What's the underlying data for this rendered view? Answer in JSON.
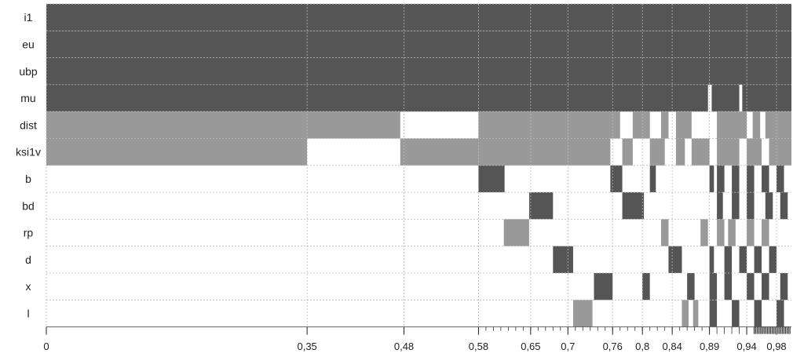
{
  "chart_data": {
    "type": "heatmap",
    "title": "",
    "xlabel": "",
    "ylabel": "",
    "xlim": [
      0,
      1
    ],
    "grid": true,
    "rows": [
      "i1",
      "eu",
      "ubp",
      "mu",
      "dist",
      "ksi1v",
      "b",
      "bd",
      "rp",
      "d",
      "x",
      "l"
    ],
    "x_tick_labels": [
      "0",
      "0,35",
      "0,48",
      "0,58",
      "0,65",
      "0,7",
      "0,76",
      "0,8",
      "0,84",
      "0,89",
      "0,94",
      "0,98"
    ],
    "colors": {
      "dark": "#555555",
      "medium": "#999999",
      "background": "#ffffff"
    },
    "value_encoding": {
      "dark": 2,
      "medium": 1,
      "none": 0
    },
    "cells": {
      "i1": [
        [
          0,
          1.0,
          "dark"
        ]
      ],
      "eu": [
        [
          0,
          1.0,
          "dark"
        ]
      ],
      "ubp": [
        [
          0,
          1.0,
          "dark"
        ]
      ],
      "mu": [
        [
          0,
          0.888,
          "dark"
        ],
        [
          0.893,
          0.93,
          "dark"
        ],
        [
          0.934,
          1.0,
          "dark"
        ]
      ],
      "dist": [
        [
          0,
          0.475,
          "medium"
        ],
        [
          0.58,
          0.77,
          "medium"
        ],
        [
          0.787,
          0.81,
          "medium"
        ],
        [
          0.825,
          0.835,
          "medium"
        ],
        [
          0.845,
          0.866,
          "medium"
        ],
        [
          0.9,
          0.94,
          "medium"
        ],
        [
          0.948,
          0.958,
          "medium"
        ],
        [
          0.965,
          1.0,
          "medium"
        ]
      ],
      "ksi1v": [
        [
          0,
          0.35,
          "medium"
        ],
        [
          0.475,
          0.757,
          "medium"
        ],
        [
          0.773,
          0.787,
          "medium"
        ],
        [
          0.81,
          0.83,
          "medium"
        ],
        [
          0.845,
          0.857,
          "medium"
        ],
        [
          0.866,
          0.89,
          "medium"
        ],
        [
          0.9,
          0.93,
          "medium"
        ],
        [
          0.94,
          0.96,
          "medium"
        ],
        [
          0.97,
          1.0,
          "medium"
        ]
      ],
      "b": [
        [
          0.58,
          0.615,
          "dark"
        ],
        [
          0.757,
          0.773,
          "dark"
        ],
        [
          0.81,
          0.818,
          "dark"
        ],
        [
          0.89,
          0.896,
          "dark"
        ],
        [
          0.9,
          0.91,
          "dark"
        ],
        [
          0.92,
          0.93,
          "dark"
        ],
        [
          0.94,
          0.95,
          "dark"
        ],
        [
          0.96,
          0.97,
          "dark"
        ],
        [
          0.98,
          0.99,
          "dark"
        ]
      ],
      "bd": [
        [
          0.648,
          0.68,
          "dark"
        ],
        [
          0.773,
          0.802,
          "dark"
        ],
        [
          0.9,
          0.908,
          "dark"
        ],
        [
          0.92,
          0.93,
          "dark"
        ],
        [
          0.94,
          0.95,
          "dark"
        ],
        [
          0.965,
          0.975,
          "dark"
        ],
        [
          0.985,
          0.995,
          "dark"
        ]
      ],
      "rp": [
        [
          0.614,
          0.648,
          "medium"
        ],
        [
          0.825,
          0.835,
          "medium"
        ],
        [
          0.878,
          0.888,
          "medium"
        ],
        [
          0.9,
          0.91,
          "medium"
        ],
        [
          0.915,
          0.925,
          "medium"
        ],
        [
          0.94,
          0.95,
          "medium"
        ],
        [
          0.96,
          0.97,
          "medium"
        ]
      ],
      "d": [
        [
          0.68,
          0.707,
          "dark"
        ],
        [
          0.835,
          0.853,
          "dark"
        ],
        [
          0.89,
          0.896,
          "dark"
        ],
        [
          0.91,
          0.92,
          "dark"
        ],
        [
          0.93,
          0.94,
          "dark"
        ],
        [
          0.95,
          0.96,
          "dark"
        ],
        [
          0.97,
          0.98,
          "dark"
        ]
      ],
      "x": [
        [
          0.735,
          0.76,
          "dark"
        ],
        [
          0.8,
          0.81,
          "dark"
        ],
        [
          0.86,
          0.87,
          "dark"
        ],
        [
          0.89,
          0.9,
          "dark"
        ],
        [
          0.91,
          0.92,
          "dark"
        ],
        [
          0.94,
          0.95,
          "dark"
        ],
        [
          0.96,
          0.97,
          "dark"
        ],
        [
          0.985,
          0.995,
          "dark"
        ]
      ],
      "l": [
        [
          0.707,
          0.733,
          "medium"
        ],
        [
          0.853,
          0.862,
          "medium"
        ],
        [
          0.868,
          0.875,
          "medium"
        ],
        [
          0.89,
          0.9,
          "dark"
        ],
        [
          0.92,
          0.93,
          "dark"
        ],
        [
          0.95,
          0.96,
          "dark"
        ],
        [
          0.98,
          0.99,
          "dark"
        ]
      ]
    }
  }
}
